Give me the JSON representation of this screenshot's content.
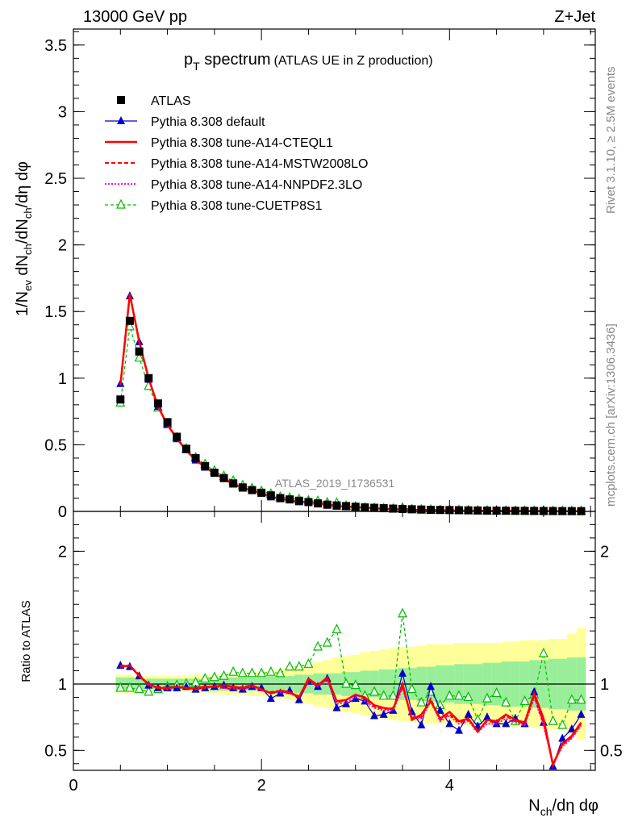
{
  "header": {
    "energy": "13000 GeV pp",
    "process": "Z+Jet"
  },
  "chart_data": {
    "type": "line",
    "title_main": "p",
    "title_sub": "T",
    "title_rest": " spectrum",
    "title_note": "(ATLAS UE in Z production)",
    "analysis_id": "ATLAS_2019_I1736531",
    "side_text_top": "Rivet 3.1.10, ≥ 2.5M events",
    "side_text_bottom": "mcplots.cern.ch [arXiv:1306.3436]",
    "xlabel": "N",
    "xlabel_sub": "ch",
    "xlabel_rest": "/dη dφ",
    "ylabel": "1/N",
    "ylabel_sub1": "ev",
    "ylabel_mid": " dN",
    "ylabel_sub2": "ch",
    "ylabel_rest": "/dN",
    "ylabel_sub3": "ch",
    "ylabel_end": "/dη dφ",
    "ratio_ylabel": "Ratio to ATLAS",
    "xlim": [
      0,
      5.55
    ],
    "ylim": [
      0,
      3.62
    ],
    "ratio_ylim": [
      0.35,
      2.3
    ],
    "x_ticks": [
      "0",
      "2",
      "4"
    ],
    "y_ticks": [
      "0",
      "0.5",
      "1",
      "1.5",
      "2",
      "2.5",
      "3",
      "3.5"
    ],
    "ratio_ticks": [
      "0.5",
      "1",
      "2"
    ],
    "x": [
      0.5,
      0.6,
      0.7,
      0.8,
      0.9,
      1.0,
      1.1,
      1.2,
      1.3,
      1.4,
      1.5,
      1.6,
      1.7,
      1.8,
      1.9,
      2.0,
      2.1,
      2.2,
      2.3,
      2.4,
      2.5,
      2.6,
      2.7,
      2.8,
      2.9,
      3.0,
      3.1,
      3.2,
      3.3,
      3.4,
      3.5,
      3.6,
      3.7,
      3.8,
      3.9,
      4.0,
      4.1,
      4.2,
      4.3,
      4.4,
      4.5,
      4.6,
      4.7,
      4.8,
      4.9,
      5.0,
      5.1,
      5.2,
      5.3,
      5.4
    ],
    "atlas": [
      0.84,
      1.43,
      1.2,
      1.0,
      0.81,
      0.67,
      0.56,
      0.47,
      0.4,
      0.34,
      0.29,
      0.25,
      0.21,
      0.18,
      0.16,
      0.14,
      0.12,
      0.1,
      0.09,
      0.08,
      0.07,
      0.06,
      0.05,
      0.045,
      0.04,
      0.035,
      0.03,
      0.027,
      0.024,
      0.021,
      0.018,
      0.016,
      0.014,
      0.012,
      0.011,
      0.01,
      0.009,
      0.008,
      0.007,
      0.006,
      0.0055,
      0.005,
      0.0045,
      0.004,
      0.0035,
      0.003,
      0.0028,
      0.0025,
      0.0022,
      0.002
    ],
    "series": [
      {
        "name": "ATLAS",
        "color": "#000000"
      },
      {
        "name": "Pythia 8.308 default",
        "color": "#0000cc",
        "ratio": [
          1.14,
          1.13,
          1.06,
          0.99,
          0.97,
          0.97,
          0.97,
          0.98,
          0.96,
          0.97,
          0.98,
          0.99,
          0.97,
          0.96,
          0.98,
          0.97,
          0.89,
          0.93,
          0.95,
          0.88,
          1.02,
          0.98,
          1.04,
          0.82,
          0.85,
          0.89,
          0.87,
          0.76,
          0.77,
          0.8,
          1.08,
          0.79,
          0.69,
          0.98,
          0.8,
          0.7,
          0.65,
          0.77,
          0.68,
          0.75,
          0.7,
          0.7,
          0.74,
          0.7,
          0.94,
          0.71,
          0.38,
          0.59,
          0.66,
          0.77
        ]
      },
      {
        "name": "Pythia 8.308 tune-A14-CTEQL1",
        "color": "#ff0000",
        "ratio": [
          1.13,
          1.14,
          1.06,
          1.0,
          0.97,
          0.97,
          0.98,
          0.97,
          0.97,
          0.98,
          0.98,
          0.99,
          0.98,
          0.97,
          0.99,
          0.96,
          0.93,
          0.95,
          0.94,
          0.9,
          1.04,
          0.99,
          1.05,
          0.87,
          0.88,
          0.92,
          0.9,
          0.84,
          0.82,
          0.81,
          1.0,
          0.73,
          0.77,
          0.87,
          0.74,
          0.79,
          0.72,
          0.74,
          0.64,
          0.73,
          0.72,
          0.77,
          0.73,
          0.71,
          0.93,
          0.74,
          0.39,
          0.55,
          0.61,
          0.71
        ]
      },
      {
        "name": "Pythia 8.308 tune-A14-MSTW2008LO",
        "color": "#ff0000",
        "ratio": [
          1.14,
          1.14,
          1.07,
          0.99,
          0.98,
          0.97,
          0.98,
          0.97,
          0.96,
          0.97,
          0.99,
          0.97,
          0.96,
          0.98,
          0.99,
          0.95,
          0.94,
          0.95,
          0.93,
          0.91,
          1.02,
          0.99,
          1.04,
          0.86,
          0.88,
          0.92,
          0.89,
          0.83,
          0.81,
          0.82,
          0.98,
          0.75,
          0.75,
          0.89,
          0.73,
          0.77,
          0.71,
          0.73,
          0.65,
          0.72,
          0.71,
          0.76,
          0.72,
          0.7,
          0.91,
          0.7,
          0.4,
          0.54,
          0.6,
          0.7
        ]
      },
      {
        "name": "Pythia 8.308 tune-A14-NNPDF2.3LO",
        "color": "#ff00ff",
        "ratio": [
          1.13,
          1.14,
          1.06,
          0.99,
          0.97,
          0.96,
          0.98,
          0.97,
          0.96,
          0.97,
          0.98,
          0.97,
          0.97,
          0.96,
          0.98,
          0.95,
          0.93,
          0.94,
          0.93,
          0.9,
          1.02,
          0.98,
          1.03,
          0.85,
          0.86,
          0.9,
          0.87,
          0.82,
          0.8,
          0.8,
          0.97,
          0.74,
          0.74,
          0.87,
          0.72,
          0.76,
          0.7,
          0.72,
          0.64,
          0.7,
          0.7,
          0.74,
          0.71,
          0.69,
          0.9,
          0.69,
          0.4,
          0.53,
          0.59,
          0.69
        ]
      },
      {
        "name": "Pythia 8.308 tune-CUETP8S1",
        "color": "#00bb00",
        "ratio": [
          0.97,
          0.97,
          0.96,
          0.94,
          0.96,
          0.98,
          0.99,
          1.0,
          1.01,
          1.04,
          1.05,
          1.06,
          1.09,
          1.08,
          1.08,
          1.08,
          1.09,
          1.08,
          1.13,
          1.13,
          1.15,
          1.28,
          1.31,
          1.41,
          1.0,
          0.99,
          0.91,
          0.94,
          0.91,
          0.91,
          1.53,
          0.96,
          0.86,
          0.94,
          0.84,
          0.91,
          0.91,
          0.9,
          0.73,
          0.89,
          0.93,
          0.86,
          0.72,
          0.87,
          0.92,
          1.23,
          0.72,
          0.69,
          0.88,
          0.88
        ]
      }
    ],
    "band_green": [
      0.05,
      0.05,
      0.04,
      0.04,
      0.04,
      0.04,
      0.04,
      0.04,
      0.04,
      0.04,
      0.05,
      0.05,
      0.05,
      0.05,
      0.05,
      0.05,
      0.06,
      0.06,
      0.06,
      0.07,
      0.07,
      0.08,
      0.08,
      0.08,
      0.09,
      0.09,
      0.1,
      0.1,
      0.11,
      0.11,
      0.12,
      0.12,
      0.13,
      0.13,
      0.14,
      0.14,
      0.15,
      0.15,
      0.15,
      0.16,
      0.16,
      0.17,
      0.17,
      0.17,
      0.18,
      0.18,
      0.19,
      0.19,
      0.2,
      0.2
    ],
    "band_yellow": [
      0.07,
      0.07,
      0.06,
      0.06,
      0.06,
      0.06,
      0.06,
      0.06,
      0.07,
      0.07,
      0.07,
      0.08,
      0.08,
      0.08,
      0.09,
      0.09,
      0.1,
      0.11,
      0.12,
      0.14,
      0.15,
      0.17,
      0.18,
      0.2,
      0.21,
      0.22,
      0.24,
      0.25,
      0.26,
      0.27,
      0.28,
      0.28,
      0.29,
      0.3,
      0.3,
      0.3,
      0.31,
      0.31,
      0.31,
      0.31,
      0.31,
      0.32,
      0.32,
      0.33,
      0.33,
      0.33,
      0.34,
      0.34,
      0.38,
      0.42
    ]
  }
}
